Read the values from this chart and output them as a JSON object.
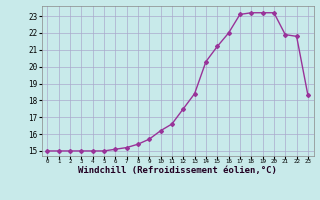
{
  "x": [
    0,
    1,
    2,
    3,
    4,
    5,
    6,
    7,
    8,
    9,
    10,
    11,
    12,
    13,
    14,
    15,
    16,
    17,
    18,
    19,
    20,
    21,
    22,
    23
  ],
  "y": [
    15.0,
    15.0,
    15.0,
    15.0,
    15.0,
    15.0,
    15.1,
    15.2,
    15.4,
    15.7,
    16.2,
    16.6,
    17.5,
    18.4,
    20.3,
    21.2,
    22.0,
    23.1,
    23.2,
    23.2,
    23.2,
    21.9,
    21.8,
    18.3
  ],
  "line_color": "#993399",
  "marker": "D",
  "markersize": 2,
  "linewidth": 1,
  "background_color": "#c8eaea",
  "grid_color": "#aaaacc",
  "xlabel": "Windchill (Refroidissement éolien,°C)",
  "yticks": [
    15,
    16,
    17,
    18,
    19,
    20,
    21,
    22,
    23
  ],
  "xticks": [
    0,
    1,
    2,
    3,
    4,
    5,
    6,
    7,
    8,
    9,
    10,
    11,
    12,
    13,
    14,
    15,
    16,
    17,
    18,
    19,
    20,
    21,
    22,
    23
  ],
  "ylim": [
    14.7,
    23.6
  ],
  "xlim": [
    -0.5,
    23.5
  ]
}
